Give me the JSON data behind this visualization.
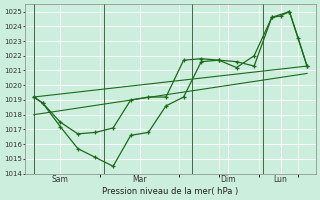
{
  "bg_color": "#cceedd",
  "grid_color": "#ffffff",
  "line_color": "#1a6b1a",
  "xlabel": "Pression niveau de la mer( hPa )",
  "day_labels": [
    "Sam",
    "Mar",
    "Dim",
    "Lun"
  ],
  "day_positions": [
    0,
    4,
    9,
    13
  ],
  "ylim_min": 1014,
  "ylim_max": 1025.5,
  "xlim_min": -0.5,
  "xlim_max": 16.0,
  "line1_x": [
    0,
    0.5,
    1.5,
    2.5,
    3.5,
    4.5,
    5.5,
    6.5,
    7.5,
    8.5,
    9.5,
    10.5,
    11.5,
    12.5,
    13.5,
    14.5,
    15.5
  ],
  "line1_y": [
    1019.2,
    1018.8,
    1017.2,
    1015.7,
    1015.1,
    1014.5,
    1016.6,
    1016.8,
    1018.6,
    1019.2,
    1021.6,
    1021.7,
    1021.6,
    1021.3,
    1024.6,
    1025.0,
    1021.3
  ],
  "line2_x": [
    0,
    0.5,
    1.5,
    2.5,
    3.5,
    4.5,
    5.5,
    6.5,
    7.5,
    8.5,
    9.5,
    10.5,
    11.5,
    12.5,
    13.5,
    14.0,
    14.5,
    15.0,
    15.5
  ],
  "line2_y": [
    1019.2,
    1018.8,
    1017.5,
    1016.7,
    1016.8,
    1017.1,
    1019.0,
    1019.2,
    1019.2,
    1021.7,
    1021.8,
    1021.7,
    1021.2,
    1022.0,
    1024.6,
    1024.7,
    1025.0,
    1023.2,
    1021.3
  ],
  "line3_x": [
    0,
    15.5
  ],
  "line3_y": [
    1019.2,
    1021.3
  ],
  "line4_x": [
    0,
    15.5
  ],
  "line4_y": [
    1018.0,
    1020.8
  ]
}
